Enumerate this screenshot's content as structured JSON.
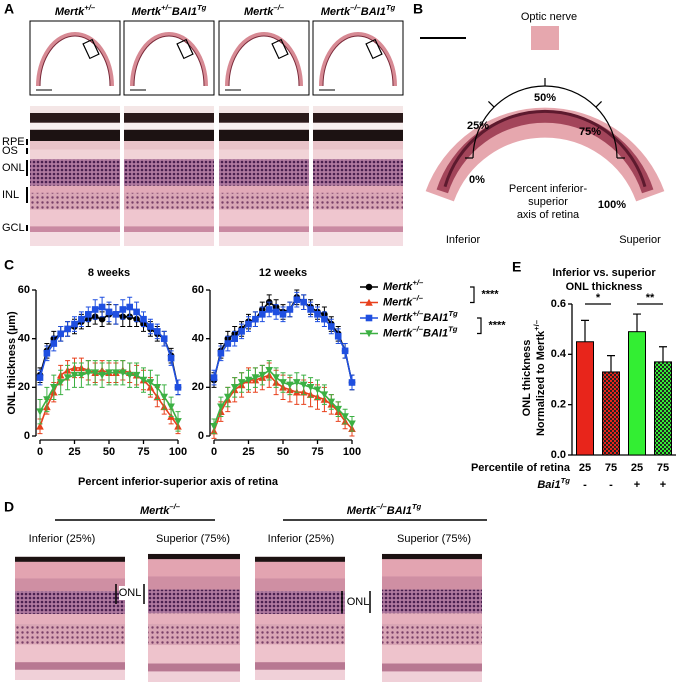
{
  "panel_labels": [
    "A",
    "B",
    "C",
    "D",
    "E"
  ],
  "panel_a": {
    "genotypes": [
      "Mertk+/–",
      "Mertk+/–BAI1Tg",
      "Mertk–/–",
      "Mertk–/–BAI1Tg"
    ],
    "layers": [
      "RPE",
      "OS",
      "ONL",
      "INL",
      "GCL"
    ]
  },
  "panel_b": {
    "optic_nerve": "Optic nerve",
    "percent_marks": [
      "0%",
      "25%",
      "50%",
      "75%",
      "100%"
    ],
    "caption": [
      "Percent inferior-",
      "superior",
      "axis of retina"
    ],
    "inferior": "Inferior",
    "superior": "Superior"
  },
  "panel_d": {
    "groups": [
      {
        "genotype": "Mertk–/–",
        "images": [
          "Inferior (25%)",
          "Superior (75%)"
        ]
      },
      {
        "genotype": "Mertk–/–BAI1Tg",
        "images": [
          "Inferior (25%)",
          "Superior (75%)"
        ]
      }
    ],
    "layer": "ONL"
  },
  "chart_data": [
    {
      "type": "line",
      "title": "8 weeks",
      "ylabel": "ONL thickness (µm)",
      "xlabel": "Percent inferior-superior axis of retina",
      "x": [
        0,
        5,
        10,
        15,
        20,
        25,
        30,
        35,
        40,
        45,
        50,
        55,
        60,
        65,
        70,
        75,
        80,
        85,
        90,
        95,
        100
      ],
      "xlim": [
        0,
        100
      ],
      "xticks": [
        0,
        25,
        50,
        75,
        100
      ],
      "ylim": [
        0,
        60
      ],
      "yticks": [
        0,
        20,
        40,
        60
      ],
      "annotations": [
        "****",
        "****"
      ],
      "series": [
        {
          "name": "Mertk+/–",
          "color": "#000000",
          "marker": "circle",
          "values": [
            25,
            35,
            40,
            42,
            44,
            45,
            47,
            48,
            49,
            48,
            50,
            50,
            49,
            49,
            48,
            46,
            44,
            42,
            40,
            33,
            20
          ],
          "errors": [
            3,
            3,
            3,
            3,
            3,
            3,
            3,
            3,
            3,
            3,
            4,
            4,
            4,
            4,
            3,
            3,
            3,
            3,
            3,
            3,
            3
          ]
        },
        {
          "name": "Mertk–/–",
          "color": "#e8401c",
          "marker": "triangle",
          "values": [
            4,
            12,
            18,
            25,
            27,
            28,
            28,
            27,
            26,
            27,
            26,
            26,
            27,
            26,
            25,
            23,
            20,
            16,
            12,
            8,
            4
          ],
          "errors": [
            3,
            3,
            4,
            4,
            4,
            4,
            4,
            4,
            4,
            4,
            4,
            4,
            4,
            4,
            4,
            4,
            4,
            4,
            3,
            3,
            3
          ]
        },
        {
          "name": "Mertk+/–BAI1Tg",
          "color": "#1f4fe0",
          "marker": "square",
          "values": [
            24,
            34,
            38,
            42,
            44,
            46,
            48,
            50,
            52,
            53,
            51,
            50,
            52,
            53,
            51,
            48,
            45,
            43,
            40,
            32,
            20
          ],
          "errors": [
            3,
            3,
            3,
            3,
            3,
            3,
            3,
            3,
            4,
            4,
            4,
            4,
            4,
            4,
            4,
            3,
            3,
            3,
            3,
            3,
            3
          ]
        },
        {
          "name": "Mertk–/–BAI1Tg",
          "color": "#3cb043",
          "marker": "triangle-down",
          "values": [
            10,
            15,
            20,
            22,
            24,
            25,
            25,
            26,
            26,
            25,
            26,
            26,
            26,
            25,
            25,
            23,
            22,
            20,
            16,
            12,
            6
          ],
          "errors": [
            5,
            5,
            5,
            5,
            5,
            5,
            5,
            5,
            5,
            5,
            5,
            5,
            5,
            5,
            5,
            5,
            5,
            5,
            5,
            4,
            4
          ]
        }
      ]
    },
    {
      "type": "line",
      "title": "12 weeks",
      "x": [
        0,
        5,
        10,
        15,
        20,
        25,
        30,
        35,
        40,
        45,
        50,
        55,
        60,
        65,
        70,
        75,
        80,
        85,
        90,
        95,
        100
      ],
      "xlim": [
        0,
        100
      ],
      "xticks": [
        0,
        25,
        50,
        75,
        100
      ],
      "ylim": [
        0,
        60
      ],
      "yticks": [
        0,
        20,
        40,
        60
      ],
      "series": [
        {
          "name": "Mertk+/–",
          "color": "#000000",
          "marker": "circle",
          "values": [
            23,
            35,
            40,
            42,
            44,
            47,
            48,
            52,
            55,
            53,
            51,
            52,
            57,
            55,
            53,
            51,
            50,
            46,
            42,
            35,
            22
          ],
          "errors": [
            3,
            3,
            3,
            3,
            3,
            3,
            3,
            3,
            3,
            3,
            3,
            3,
            3,
            3,
            3,
            3,
            3,
            3,
            3,
            3,
            3
          ]
        },
        {
          "name": "Mertk–/–",
          "color": "#e8401c",
          "marker": "triangle",
          "values": [
            2,
            10,
            15,
            19,
            21,
            23,
            23,
            24,
            25,
            22,
            20,
            19,
            18,
            18,
            17,
            16,
            15,
            13,
            10,
            6,
            3
          ],
          "errors": [
            3,
            4,
            5,
            5,
            5,
            5,
            5,
            5,
            5,
            5,
            5,
            5,
            5,
            5,
            5,
            5,
            5,
            4,
            4,
            3,
            3
          ]
        },
        {
          "name": "Mertk+/–BAI1Tg",
          "color": "#1f4fe0",
          "marker": "square",
          "values": [
            24,
            34,
            38,
            40,
            43,
            46,
            48,
            50,
            52,
            51,
            50,
            52,
            56,
            55,
            52,
            50,
            48,
            45,
            41,
            35,
            22
          ],
          "errors": [
            3,
            3,
            3,
            3,
            3,
            3,
            3,
            3,
            3,
            3,
            3,
            3,
            3,
            3,
            3,
            3,
            3,
            3,
            3,
            3,
            3
          ]
        },
        {
          "name": "Mertk–/–BAI1Tg",
          "color": "#3cb043",
          "marker": "triangle-down",
          "values": [
            4,
            12,
            16,
            20,
            22,
            23,
            24,
            25,
            27,
            24,
            22,
            21,
            22,
            21,
            20,
            19,
            17,
            14,
            11,
            8,
            5
          ],
          "errors": [
            3,
            4,
            4,
            4,
            4,
            4,
            4,
            4,
            4,
            4,
            4,
            4,
            4,
            4,
            4,
            4,
            4,
            3,
            3,
            3,
            3
          ]
        }
      ]
    },
    {
      "type": "bar",
      "title": [
        "Inferior vs. superior",
        "ONL thickness"
      ],
      "ylabel": [
        "ONL thickness",
        "Normalized to Mertk+/–"
      ],
      "values": [
        0.45,
        0.33,
        0.49,
        0.37
      ],
      "errors": [
        0.085,
        0.065,
        0.07,
        0.06
      ],
      "colors": [
        "#e8251b",
        "#e8251b",
        "#33ee33",
        "#33ee33"
      ],
      "checkered": [
        false,
        true,
        false,
        true
      ],
      "ylim": [
        0,
        0.6
      ],
      "yticks": [
        {
          "value": 0,
          "label": "0.0"
        },
        {
          "value": 0.2,
          "label": "0.2"
        },
        {
          "value": 0.4,
          "label": "0.4"
        },
        {
          "value": 0.6,
          "label": "0.6"
        }
      ],
      "annotations": [
        "*",
        "**"
      ],
      "table": {
        "rows": [
          {
            "label": "Percentile of retina",
            "cells": [
              "25",
              "75",
              "25",
              "75"
            ]
          },
          {
            "label": "Bai1Tg",
            "cells": [
              "-",
              "-",
              "+",
              "+"
            ]
          }
        ]
      }
    }
  ]
}
